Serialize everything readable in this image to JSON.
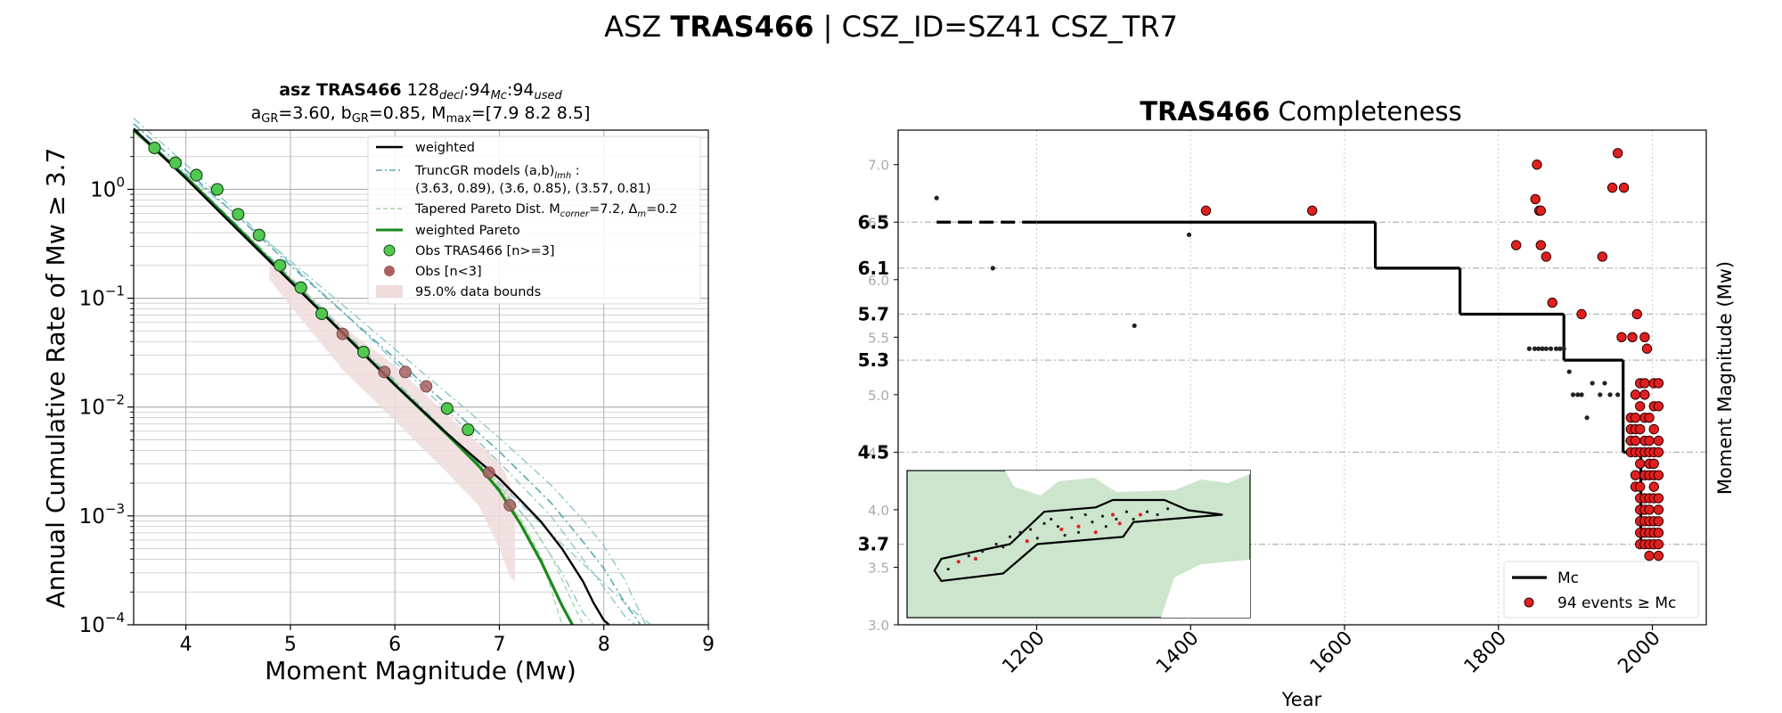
{
  "suptitle": {
    "pre": "ASZ ",
    "bold": "TRAS466",
    "post": " | CSZ_ID=SZ41 CSZ_TR7"
  },
  "chart_data": [
    {
      "type": "line",
      "title": {
        "bold": "asz TRAS466",
        "counts": [
          {
            "n": "128",
            "sub": "decl"
          },
          {
            "n": "94",
            "sub": "Mc"
          },
          {
            "n": "94",
            "sub": "used"
          }
        ],
        "line2": [
          {
            "t": "a"
          },
          {
            "t": "GR",
            "sub": true
          },
          {
            "t": "=3.60,  b"
          },
          {
            "t": "GR",
            "sub": true
          },
          {
            "t": "=0.85, M"
          },
          {
            "t": "max",
            "sub": true
          },
          {
            "t": "=[7.9 8.2 8.5]"
          }
        ]
      },
      "xlabel": "Moment Magnitude (Mw)",
      "ylabel": "Annual Cumulative Rate of Mw  ≥  3.7",
      "xlim": [
        3.5,
        9
      ],
      "ylim": [
        0.0001,
        3.5
      ],
      "yscale": "log",
      "xticks": [
        "4",
        "5",
        "6",
        "7",
        "8",
        "9"
      ],
      "yticks": [
        {
          "v": 1,
          "mant": "10",
          "exp": "0"
        },
        {
          "v": 0.1,
          "mant": "10",
          "exp": "−1"
        },
        {
          "v": 0.01,
          "mant": "10",
          "exp": "−2"
        },
        {
          "v": 0.001,
          "mant": "10",
          "exp": "−3"
        },
        {
          "v": 0.0001,
          "mant": "10",
          "exp": "−4"
        }
      ],
      "grid": true,
      "legend_position": "top-right",
      "legend": [
        {
          "kind": "line",
          "color": "#000000",
          "text": "weighted"
        },
        {
          "kind": "dashdot",
          "color": "#5aa9b0",
          "text": "TruncGR models (a,b)",
          "sub": "lmh",
          "after": " :",
          "line2": " (3.63, 0.89), (3.6, 0.85), (3.57, 0.81)"
        },
        {
          "kind": "dashed",
          "color": "#9fd4a4",
          "text": "Tapered Pareto Dist. M",
          "sub": "corner",
          "after": "=7.2, Δ",
          "sub2": "m",
          "after2": "=0.2"
        },
        {
          "kind": "line",
          "color": "#1a8a1a",
          "text": "weighted Pareto"
        },
        {
          "kind": "dot",
          "color": "#4fca4f",
          "text": "Obs TRAS466 [n>=3]"
        },
        {
          "kind": "dot",
          "color": "#a86060",
          "text": "Obs [n<3]"
        },
        {
          "kind": "patch",
          "color": "#f0dcdc",
          "text": "95.0% data bounds"
        }
      ],
      "colors": {
        "weighted": "#000000",
        "truncgr": "#5aa9b0",
        "truncgr_light": "#8cc7cc",
        "pareto": "#1a8a1a",
        "tapered": "#9fd4a4",
        "obs": "#4fca4f",
        "obs_small": "#a86060",
        "bounds": "#f0dcdc"
      },
      "series": [
        {
          "name": "weighted",
          "x": [
            3.5,
            4,
            4.5,
            5,
            5.5,
            6,
            6.5,
            6.8,
            7.0,
            7.2,
            7.4,
            7.6,
            7.8,
            7.9,
            8.0,
            8.05
          ],
          "y": [
            3.6,
            1.26,
            0.42,
            0.142,
            0.048,
            0.016,
            0.0057,
            0.0032,
            0.0022,
            0.0014,
            0.00088,
            0.0005,
            0.00025,
            0.00016,
            0.00011,
            0.0001
          ]
        },
        {
          "name": "TruncGR (3.63, 0.89)",
          "x": [
            3.5,
            4,
            4.5,
            5,
            5.5,
            6,
            6.5,
            7.0,
            7.5,
            7.8,
            8.0,
            8.2,
            8.3
          ],
          "y": [
            4.5,
            1.7,
            0.6,
            0.21,
            0.075,
            0.026,
            0.0093,
            0.0031,
            0.00098,
            0.0004,
            0.00022,
            0.00012,
            0.0001
          ]
        },
        {
          "name": "TruncGR (3.6, 0.85)",
          "x": [
            3.5,
            4,
            4.5,
            5,
            5.5,
            6,
            6.5,
            7.0,
            7.5,
            7.8,
            8.0,
            8.2,
            8.35
          ],
          "y": [
            4.0,
            1.5,
            0.56,
            0.2,
            0.075,
            0.028,
            0.0105,
            0.0039,
            0.0013,
            0.00058,
            0.00033,
            0.00016,
            0.0001
          ]
        },
        {
          "name": "TruncGR (3.57, 0.81)",
          "x": [
            3.5,
            4,
            4.5,
            5,
            5.5,
            6,
            6.5,
            7.0,
            7.5,
            7.8,
            8.0,
            8.2,
            8.4
          ],
          "y": [
            3.5,
            1.4,
            0.56,
            0.22,
            0.087,
            0.034,
            0.0134,
            0.0052,
            0.0019,
            0.00092,
            0.00053,
            0.00026,
            0.0001
          ]
        },
        {
          "name": "TruncGR low Mmax",
          "x": [
            3.5,
            4,
            4.5,
            5,
            5.5,
            6,
            6.5,
            7.0,
            7.3,
            7.6,
            7.8,
            7.9
          ],
          "y": [
            3.6,
            1.3,
            0.44,
            0.15,
            0.05,
            0.017,
            0.0058,
            0.0018,
            0.00085,
            0.0003,
            0.00013,
            0.0001
          ]
        },
        {
          "name": "TruncGR high Mmax",
          "x": [
            3.5,
            4,
            4.5,
            5,
            5.5,
            6,
            6.5,
            7.0,
            7.5,
            8.0,
            8.3,
            8.45
          ],
          "y": [
            3.7,
            1.35,
            0.46,
            0.155,
            0.052,
            0.0175,
            0.0059,
            0.002,
            0.00068,
            0.00024,
            0.00013,
            0.0001
          ]
        },
        {
          "name": "weighted Pareto",
          "x": [
            3.5,
            4,
            4.5,
            5,
            5.5,
            6,
            6.5,
            6.8,
            7.0,
            7.2,
            7.4,
            7.6,
            7.7
          ],
          "y": [
            3.5,
            1.3,
            0.44,
            0.145,
            0.048,
            0.016,
            0.0056,
            0.0029,
            0.0017,
            0.00085,
            0.00038,
            0.00015,
            0.0001
          ]
        },
        {
          "name": "Tapered Pareto a",
          "x": [
            5.5,
            6,
            6.5,
            7.0,
            7.2,
            7.4,
            7.6
          ],
          "y": [
            0.05,
            0.017,
            0.0058,
            0.0017,
            0.00095,
            0.00042,
            0.0001
          ]
        },
        {
          "name": "Tapered Pareto b",
          "x": [
            5.5,
            6,
            6.5,
            7.0,
            7.3,
            7.5,
            7.7,
            7.8
          ],
          "y": [
            0.047,
            0.016,
            0.0058,
            0.0019,
            0.00085,
            0.00042,
            0.00016,
            0.0001
          ]
        },
        {
          "name": "Obs TRAS466 [n>=3]",
          "x": [
            3.7,
            3.9,
            4.1,
            4.3,
            4.5,
            4.7,
            4.9,
            5.1,
            5.3,
            5.7,
            6.5,
            6.7
          ],
          "y": [
            2.4,
            1.75,
            1.35,
            1.0,
            0.59,
            0.38,
            0.2,
            0.125,
            0.072,
            0.032,
            0.0097,
            0.0062
          ]
        },
        {
          "name": "Obs [n<3]",
          "x": [
            5.5,
            5.9,
            6.1,
            6.3,
            6.9,
            7.1
          ],
          "y": [
            0.047,
            0.021,
            0.021,
            0.0155,
            0.0025,
            0.00125
          ]
        }
      ],
      "bounds_upper": {
        "x": [
          4.8,
          5.0,
          5.5,
          6.0,
          6.5,
          6.8,
          7.0,
          7.1,
          7.15
        ],
        "y": [
          0.25,
          0.16,
          0.055,
          0.024,
          0.0085,
          0.0046,
          0.0032,
          0.002,
          0.0011
        ]
      },
      "bounds_lower": {
        "x": [
          4.8,
          5.0,
          5.5,
          6.0,
          6.5,
          6.8,
          7.0,
          7.1,
          7.15
        ],
        "y": [
          0.15,
          0.085,
          0.022,
          0.0075,
          0.0025,
          0.00125,
          0.0005,
          0.00028,
          0.00025
        ]
      }
    },
    {
      "type": "scatter",
      "title": {
        "bold": "TRAS466",
        "rest": " Completeness"
      },
      "xlabel": "Year",
      "ylabel": "Moment Magnitude (Mw)",
      "xlim": [
        1020,
        2070
      ],
      "ylim": [
        3.0,
        7.3
      ],
      "xticks": [
        "1200",
        "1400",
        "1600",
        "1800",
        "2000"
      ],
      "yticks_minor": [
        "3.0",
        "3.5",
        "4.0",
        "4.5",
        "5.0",
        "5.5",
        "6.0",
        "6.5",
        "7.0"
      ],
      "yticks_major": [
        "3.7",
        "4.5",
        "5.3",
        "5.7",
        "6.1",
        "6.5"
      ],
      "grid": true,
      "legend_position": "bottom-right",
      "legend": [
        {
          "kind": "line",
          "color": "#000000",
          "text": "Mc"
        },
        {
          "kind": "dot",
          "color": "#e02020",
          "text": "94 events  ≥  Mc"
        }
      ],
      "colors": {
        "mc": "#000000",
        "events": "#e02020",
        "small": "#222222",
        "inset_land": "#cde5cc"
      },
      "mc_steps": [
        {
          "from": 1070,
          "to": 1200,
          "mc": 6.5,
          "dashed": true
        },
        {
          "from": 1200,
          "to": 1640,
          "mc": 6.5
        },
        {
          "from": 1640,
          "to": 1750,
          "mc": 6.1
        },
        {
          "from": 1750,
          "to": 1885,
          "mc": 5.7
        },
        {
          "from": 1885,
          "to": 1962,
          "mc": 5.3
        },
        {
          "from": 1962,
          "to": 1985,
          "mc": 4.5
        },
        {
          "from": 1985,
          "to": 2013,
          "mc": 3.7
        }
      ],
      "events_above": {
        "x": [
          1420,
          1558,
          1823,
          1848,
          1850,
          1853,
          1855,
          1862,
          1870,
          1908,
          1935,
          1948,
          1955,
          1963,
          1974,
          1980,
          1990,
          1993,
          1855,
          1960
        ],
        "y": [
          6.6,
          6.6,
          6.3,
          6.7,
          7.0,
          6.6,
          6.3,
          6.2,
          5.8,
          5.7,
          6.2,
          6.8,
          7.1,
          6.8,
          5.5,
          5.7,
          5.5,
          5.4,
          6.6,
          5.5
        ]
      },
      "events_dense_columns": [
        {
          "x": 1972,
          "mags": [
            4.8,
            4.7,
            4.6,
            4.5
          ]
        },
        {
          "x": 1978,
          "mags": [
            5.0,
            4.8,
            4.7,
            4.6,
            4.5,
            4.3,
            4.2
          ]
        },
        {
          "x": 1984,
          "mags": [
            5.1,
            4.9,
            4.7,
            4.5,
            4.4,
            4.2,
            4.1,
            4.0,
            3.9,
            3.8,
            3.7
          ]
        },
        {
          "x": 1990,
          "mags": [
            5.1,
            5.0,
            4.8,
            4.6,
            4.5,
            4.3,
            4.1,
            4.0,
            3.9,
            3.8,
            3.7
          ]
        },
        {
          "x": 1996,
          "mags": [
            4.8,
            4.6,
            4.5,
            4.4,
            4.3,
            4.1,
            4.0,
            3.9,
            3.8,
            3.7,
            3.6
          ]
        },
        {
          "x": 2002,
          "mags": [
            5.1,
            4.9,
            4.7,
            4.5,
            4.4,
            4.3,
            4.2,
            4.1,
            3.9,
            3.8,
            3.7
          ]
        },
        {
          "x": 2008,
          "mags": [
            5.1,
            4.9,
            4.6,
            4.5,
            4.3,
            4.1,
            4.0,
            3.9,
            3.8,
            3.7,
            3.6
          ]
        }
      ],
      "events_below": {
        "x": [
          1070,
          1143,
          1398,
          1327,
          1840,
          1847,
          1852,
          1857,
          1862,
          1868,
          1875,
          1880,
          1885,
          1892,
          1897,
          1903,
          1908,
          1915,
          1922,
          1932,
          1938,
          1945,
          1955,
          1968,
          1975,
          1985,
          1993,
          2003,
          2010
        ],
        "y": [
          6.71,
          6.1,
          6.39,
          5.6,
          5.4,
          5.4,
          5.4,
          5.4,
          5.4,
          5.4,
          5.4,
          5.4,
          5.4,
          5.2,
          5.0,
          5.0,
          5.0,
          4.8,
          5.1,
          5.0,
          5.1,
          5.0,
          5.0,
          4.6,
          4.3,
          4.1,
          3.6,
          3.6,
          3.6
        ]
      },
      "inset": {
        "polygon": [
          [
            0.08,
            0.68
          ],
          [
            0.1,
            0.6
          ],
          [
            0.3,
            0.5
          ],
          [
            0.4,
            0.28
          ],
          [
            0.55,
            0.25
          ],
          [
            0.6,
            0.2
          ],
          [
            0.75,
            0.2
          ],
          [
            0.82,
            0.27
          ],
          [
            0.92,
            0.3
          ],
          [
            0.66,
            0.35
          ],
          [
            0.63,
            0.45
          ],
          [
            0.38,
            0.5
          ],
          [
            0.28,
            0.7
          ],
          [
            0.1,
            0.75
          ]
        ],
        "dots_red": [
          [
            0.15,
            0.62
          ],
          [
            0.2,
            0.6
          ],
          [
            0.35,
            0.48
          ],
          [
            0.45,
            0.4
          ],
          [
            0.5,
            0.38
          ],
          [
            0.55,
            0.42
          ],
          [
            0.6,
            0.3
          ],
          [
            0.62,
            0.36
          ],
          [
            0.68,
            0.3
          ]
        ],
        "dots_black": [
          [
            0.12,
            0.67
          ],
          [
            0.18,
            0.58
          ],
          [
            0.22,
            0.55
          ],
          [
            0.26,
            0.5
          ],
          [
            0.3,
            0.45
          ],
          [
            0.33,
            0.42
          ],
          [
            0.36,
            0.4
          ],
          [
            0.4,
            0.36
          ],
          [
            0.42,
            0.33
          ],
          [
            0.44,
            0.38
          ],
          [
            0.48,
            0.32
          ],
          [
            0.5,
            0.42
          ],
          [
            0.52,
            0.3
          ],
          [
            0.54,
            0.35
          ],
          [
            0.57,
            0.31
          ],
          [
            0.58,
            0.38
          ],
          [
            0.61,
            0.33
          ],
          [
            0.64,
            0.28
          ],
          [
            0.66,
            0.33
          ],
          [
            0.7,
            0.28
          ],
          [
            0.73,
            0.3
          ],
          [
            0.76,
            0.26
          ],
          [
            0.46,
            0.44
          ],
          [
            0.38,
            0.46
          ],
          [
            0.28,
            0.52
          ]
        ]
      }
    }
  ]
}
